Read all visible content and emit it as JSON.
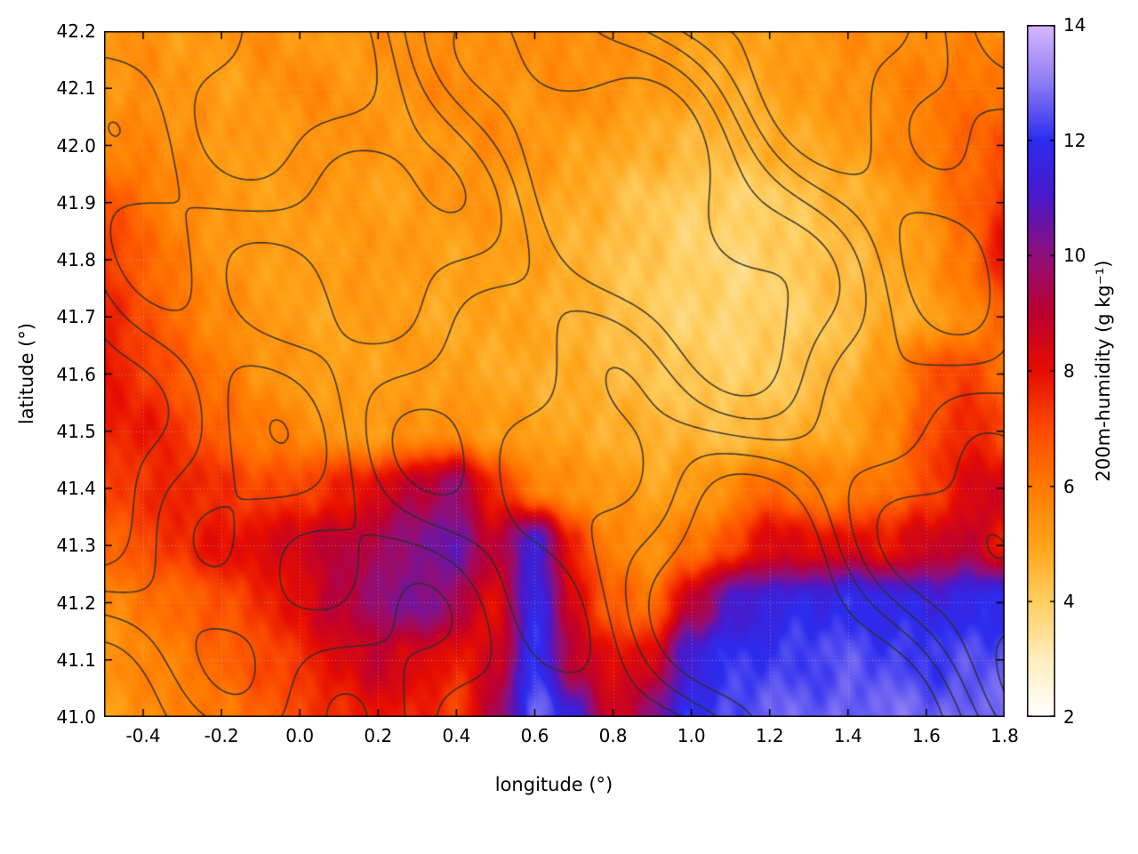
{
  "chart_data": {
    "type": "heatmap",
    "title": "",
    "xlabel": "longitude (°)",
    "ylabel": "latitude (°)",
    "xlim": [
      -0.5,
      1.8
    ],
    "ylim": [
      41.0,
      42.2
    ],
    "grid": true,
    "xticks": [
      {
        "v": -0.4,
        "label": "-0.4"
      },
      {
        "v": -0.2,
        "label": "-0.2"
      },
      {
        "v": 0.0,
        "label": "0.0"
      },
      {
        "v": 0.2,
        "label": "0.2"
      },
      {
        "v": 0.4,
        "label": "0.4"
      },
      {
        "v": 0.6,
        "label": "0.6"
      },
      {
        "v": 0.8,
        "label": "0.8"
      },
      {
        "v": 1.0,
        "label": "1.0"
      },
      {
        "v": 1.2,
        "label": "1.2"
      },
      {
        "v": 1.4,
        "label": "1.4"
      },
      {
        "v": 1.6,
        "label": "1.6"
      },
      {
        "v": 1.8,
        "label": "1.8"
      }
    ],
    "yticks": [
      {
        "v": 41.0,
        "label": "41.0"
      },
      {
        "v": 41.1,
        "label": "41.1"
      },
      {
        "v": 41.2,
        "label": "41.2"
      },
      {
        "v": 41.3,
        "label": "41.3"
      },
      {
        "v": 41.4,
        "label": "41.4"
      },
      {
        "v": 41.5,
        "label": "41.5"
      },
      {
        "v": 41.6,
        "label": "41.6"
      },
      {
        "v": 41.7,
        "label": "41.7"
      },
      {
        "v": 41.8,
        "label": "41.8"
      },
      {
        "v": 41.9,
        "label": "41.9"
      },
      {
        "v": 42.0,
        "label": "42.0"
      },
      {
        "v": 42.1,
        "label": "42.1"
      },
      {
        "v": 42.2,
        "label": "42.2"
      }
    ],
    "colorbar": {
      "label": "200m-humidity (g kg⁻¹)",
      "min": 2,
      "max": 14,
      "ticks": [
        {
          "v": 2,
          "label": "2"
        },
        {
          "v": 4,
          "label": "4"
        },
        {
          "v": 6,
          "label": "6"
        },
        {
          "v": 8,
          "label": "8"
        },
        {
          "v": 10,
          "label": "10"
        },
        {
          "v": 12,
          "label": "12"
        },
        {
          "v": 14,
          "label": "14"
        }
      ]
    },
    "palette": [
      {
        "v": 2,
        "c": "#ffffff"
      },
      {
        "v": 3,
        "c": "#ffeebf"
      },
      {
        "v": 4,
        "c": "#ffcf60"
      },
      {
        "v": 5,
        "c": "#ffa318"
      },
      {
        "v": 6,
        "c": "#ff7a00"
      },
      {
        "v": 7,
        "c": "#fb4a00"
      },
      {
        "v": 8,
        "c": "#e60d00"
      },
      {
        "v": 9,
        "c": "#bc0030"
      },
      {
        "v": 10,
        "c": "#8f0f7a"
      },
      {
        "v": 11,
        "c": "#4a18c8"
      },
      {
        "v": 12,
        "c": "#2c2cee"
      },
      {
        "v": 13,
        "c": "#8c7cf4"
      },
      {
        "v": 14,
        "c": "#d9b8ff"
      }
    ],
    "x": [
      -0.5,
      -0.4,
      -0.3,
      -0.2,
      -0.1,
      0.0,
      0.1,
      0.2,
      0.3,
      0.4,
      0.5,
      0.6,
      0.7,
      0.8,
      0.9,
      1.0,
      1.1,
      1.2,
      1.3,
      1.4,
      1.5,
      1.6,
      1.7,
      1.8
    ],
    "y_top_to_bottom": [
      42.2,
      42.1,
      42.0,
      41.9,
      41.8,
      41.7,
      41.6,
      41.5,
      41.4,
      41.3,
      41.2,
      41.1,
      41.0
    ],
    "values": [
      [
        5.3,
        5.4,
        5.2,
        5.3,
        5.5,
        5.3,
        5.1,
        5.4,
        5.6,
        5.5,
        5.3,
        5.7,
        5.5,
        5.4,
        5.3,
        5.1,
        4.9,
        5.1,
        5.3,
        5.5,
        5.4,
        5.6,
        5.7,
        5.5
      ],
      [
        5.4,
        5.5,
        5.3,
        5.1,
        5.3,
        5.6,
        5.4,
        5.2,
        5.5,
        5.7,
        5.4,
        5.3,
        5.6,
        5.4,
        5.2,
        5.0,
        4.8,
        5.0,
        5.2,
        5.4,
        5.6,
        5.9,
        6.1,
        6.3
      ],
      [
        5.6,
        5.7,
        5.5,
        5.3,
        5.1,
        5.3,
        5.5,
        5.3,
        5.1,
        5.4,
        5.6,
        5.3,
        5.1,
        4.9,
        4.7,
        4.6,
        4.5,
        4.7,
        4.9,
        5.1,
        5.5,
        6.0,
        6.4,
        6.8
      ],
      [
        6.9,
        6.2,
        5.6,
        5.3,
        5.1,
        5.3,
        5.2,
        5.0,
        5.2,
        5.4,
        5.2,
        5.0,
        4.8,
        4.5,
        4.2,
        4.0,
        3.9,
        4.0,
        4.3,
        4.6,
        5.0,
        5.5,
        6.4,
        7.4
      ],
      [
        7.3,
        6.6,
        5.8,
        5.4,
        5.2,
        5.0,
        5.2,
        5.3,
        5.1,
        5.0,
        5.2,
        5.0,
        4.7,
        4.4,
        4.1,
        3.9,
        3.8,
        3.9,
        4.2,
        4.5,
        4.8,
        5.2,
        6.2,
        8.0
      ],
      [
        7.6,
        7.0,
        6.2,
        5.6,
        5.3,
        5.1,
        5.0,
        5.2,
        5.0,
        4.9,
        5.0,
        4.9,
        4.7,
        4.4,
        4.1,
        3.9,
        3.8,
        3.9,
        4.1,
        4.4,
        4.7,
        5.0,
        5.6,
        6.2
      ],
      [
        7.9,
        7.4,
        6.6,
        6.0,
        5.5,
        5.2,
        5.0,
        5.1,
        5.2,
        5.0,
        4.9,
        4.8,
        4.7,
        4.5,
        4.3,
        4.1,
        4.0,
        4.1,
        4.3,
        4.6,
        5.4,
        6.6,
        7.2,
        6.2
      ],
      [
        7.6,
        7.9,
        7.2,
        6.5,
        6.0,
        5.6,
        5.3,
        5.2,
        5.4,
        5.6,
        5.2,
        5.0,
        4.9,
        4.8,
        4.6,
        4.5,
        4.4,
        4.5,
        4.7,
        5.0,
        5.6,
        6.8,
        7.8,
        7.0
      ],
      [
        7.0,
        7.4,
        7.8,
        7.4,
        7.0,
        7.2,
        7.6,
        8.2,
        9.2,
        9.8,
        7.5,
        6.0,
        5.4,
        5.2,
        5.0,
        5.2,
        5.5,
        6.5,
        6.0,
        5.8,
        6.2,
        7.0,
        8.2,
        8.5
      ],
      [
        6.5,
        7.0,
        7.5,
        8.0,
        8.3,
        8.6,
        9.0,
        9.5,
        10.2,
        10.5,
        9.0,
        11.5,
        7.5,
        5.8,
        5.5,
        6.0,
        7.0,
        8.5,
        8.0,
        8.3,
        8.0,
        8.5,
        9.0,
        8.0
      ],
      [
        5.6,
        6.0,
        6.4,
        6.9,
        7.4,
        8.2,
        9.2,
        9.8,
        10.4,
        9.6,
        8.0,
        11.8,
        8.5,
        6.5,
        6.2,
        9.0,
        11.0,
        11.5,
        11.8,
        12.0,
        11.8,
        11.6,
        11.8,
        12.0
      ],
      [
        5.4,
        5.7,
        6.0,
        6.4,
        6.9,
        7.5,
        8.2,
        8.8,
        8.4,
        7.8,
        8.5,
        12.2,
        9.0,
        8.0,
        8.5,
        11.5,
        12.0,
        12.2,
        12.3,
        12.4,
        12.3,
        12.2,
        12.3,
        12.5
      ],
      [
        5.2,
        5.5,
        5.8,
        6.1,
        6.5,
        7.0,
        7.6,
        8.0,
        7.6,
        7.2,
        9.5,
        12.6,
        11.5,
        8.5,
        10.0,
        12.0,
        12.4,
        12.6,
        12.6,
        12.7,
        12.8,
        12.6,
        12.7,
        13.0
      ]
    ],
    "contour_overlay": {
      "color": "#2e2e2e",
      "levels": [
        -1.3,
        -0.65,
        0,
        0.65,
        1.3
      ]
    },
    "colors": {
      "frame": "#000000",
      "grid": "#bebebe",
      "background": "#ffffff"
    }
  }
}
